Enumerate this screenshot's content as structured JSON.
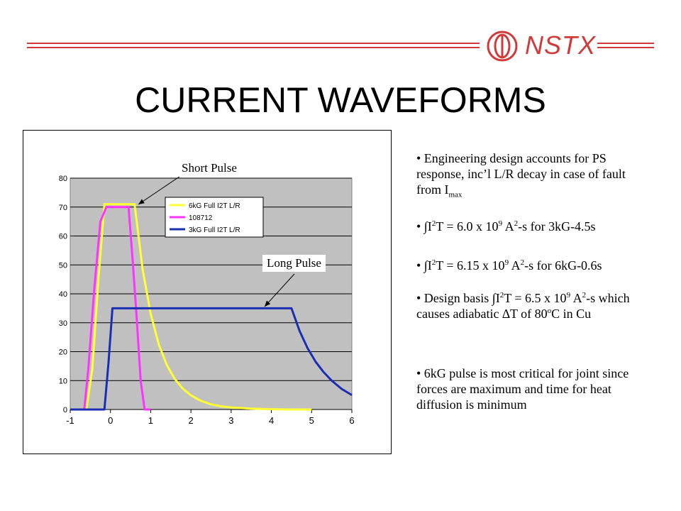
{
  "header": {
    "brand": "NSTX",
    "title": "CURRENT WAVEFORMS"
  },
  "colors": {
    "accent": "#d23a3a",
    "plot_bg": "#c0c0c0",
    "series_6kG": "#ffff33",
    "series_108712": "#ff33ff",
    "series_3kG": "#1a2eb3"
  },
  "annotations": {
    "short_pulse": "Short Pulse",
    "long_pulse": "Long Pulse"
  },
  "chart_data": {
    "type": "line",
    "title": "",
    "xlabel": "",
    "ylabel": "",
    "xlim": [
      -1,
      6
    ],
    "ylim": [
      0,
      80
    ],
    "x_ticks": [
      -1,
      0,
      1,
      2,
      3,
      4,
      5,
      6
    ],
    "y_ticks": [
      0,
      10,
      20,
      30,
      40,
      50,
      60,
      70,
      80
    ],
    "grid": true,
    "legend_position": "top-right",
    "series": [
      {
        "name": "6kG Full I2T L/R",
        "color": "#ffff33",
        "x": [
          -1,
          -0.6,
          -0.45,
          -0.3,
          -0.15,
          0,
          0.3,
          0.6,
          0.8,
          1.0,
          1.2,
          1.4,
          1.6,
          1.8,
          2.0,
          2.25,
          2.5,
          2.75,
          3.0,
          3.5,
          4.0,
          4.5,
          5.0
        ],
        "y": [
          0,
          0,
          14,
          45,
          71,
          71,
          71,
          71,
          48.4,
          33.1,
          22.5,
          15.4,
          10.5,
          7.2,
          4.9,
          3.0,
          1.8,
          1.1,
          0.7,
          0.3,
          0.1,
          0,
          0
        ]
      },
      {
        "name": "108712",
        "color": "#ff33ff",
        "x": [
          -1,
          -0.65,
          -0.55,
          -0.4,
          -0.25,
          -0.1,
          0.25,
          0.45,
          0.55,
          0.65,
          0.75,
          0.85,
          1.0
        ],
        "y": [
          0,
          0,
          14,
          42,
          65,
          70,
          70,
          70,
          52,
          32,
          10,
          0,
          0
        ]
      },
      {
        "name": "3kG Full I2T L/R",
        "color": "#1a2eb3",
        "x": [
          -1,
          -0.15,
          -0.05,
          0.05,
          4.5,
          4.7,
          4.9,
          5.1,
          5.3,
          5.5,
          5.75,
          6.0
        ],
        "y": [
          0,
          0,
          16,
          35,
          35,
          27.2,
          21.2,
          16.5,
          12.9,
          10.0,
          7.1,
          5.0
        ]
      }
    ]
  },
  "bullets": [
    {
      "html": "• Engineering design accounts for PS response, inc’l L/R decay in case of fault from I<sub>max</sub>"
    },
    {
      "html": "• ∫I<sup>2</sup>T = 6.0 x 10<sup>9</sup> A<sup>2</sup>-s for 3kG-4.5s"
    },
    {
      "html": "• ∫I<sup>2</sup>T = 6.15 x 10<sup>9</sup> A<sup>2</sup>-s for 6kG-0.6s"
    },
    {
      "html": "• Design basis ∫I<sup>2</sup>T = 6.5 x 10<sup>9</sup> A<sup>2</sup>-s which causes adiabatic ∆T of 80<sup>o</sup>C in Cu"
    },
    {
      "html": "• 6kG pulse is most critical for joint since forces are maximum and time for heat diffusion is minimum"
    }
  ]
}
